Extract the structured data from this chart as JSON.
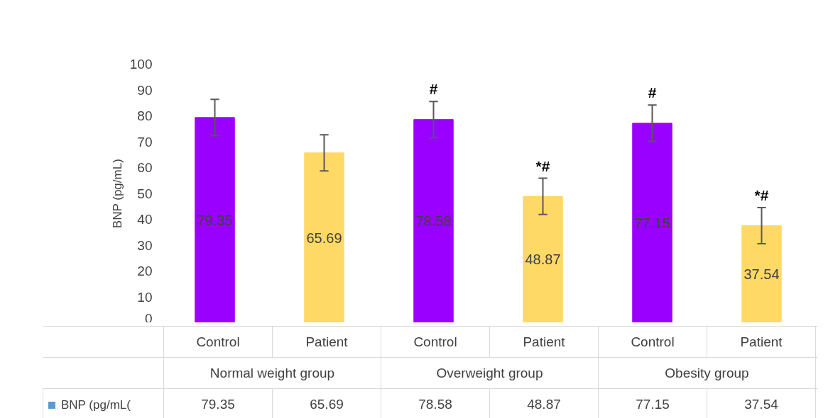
{
  "chart_data": [
    {
      "type": "bar",
      "ylabel": "BNP (pg/mL)",
      "xlabel": "Normal weight group",
      "categories": [
        "Control",
        "Patient"
      ],
      "series": [
        {
          "name": "BNP (pg/mL(",
          "color": "#5b9bd5",
          "colors": [
            "#9900ff",
            "#ffd966"
          ],
          "values": [
            79.35,
            65.69
          ],
          "value_labels": [
            "79.35",
            "65.69"
          ],
          "errors": [
            7,
            7
          ]
        }
      ],
      "ylim": [
        0,
        100
      ],
      "yticks": [
        0,
        10,
        20,
        30,
        40,
        50,
        60,
        70,
        80,
        90,
        100
      ],
      "data_labels": true,
      "legend": "bottom"
    },
    {
      "type": "bar",
      "xlabel": "Overweight group",
      "categories": [
        "Control",
        "Patient"
      ],
      "series": [
        {
          "colors": [
            "#9900ff",
            "#ffd966"
          ],
          "values": [
            78.58,
            48.87
          ],
          "value_labels": [
            "78.58",
            "48.87"
          ],
          "errors": [
            7,
            7
          ]
        }
      ],
      "ylim": [
        0,
        100
      ],
      "tick_labels": "x",
      "data_labels": true,
      "annotations": [
        {
          "text": "#",
          "x": "Control",
          "y": 85.58
        },
        {
          "text": "*#",
          "x": "Patient",
          "y": 55.87
        }
      ]
    },
    {
      "type": "bar",
      "xlabel": "Obesity group",
      "categories": [
        "Control",
        "Patient"
      ],
      "series": [
        {
          "colors": [
            "#9900ff",
            "#ffd966"
          ],
          "values": [
            77.15,
            37.54
          ],
          "value_labels": [
            "77.15",
            "37.54"
          ],
          "errors": [
            7,
            7
          ]
        }
      ],
      "ylim": [
        0,
        100
      ],
      "tick_labels": "x",
      "data_labels": true,
      "annotations": [
        {
          "text": "#",
          "x": "Control",
          "y": 84.15
        },
        {
          "text": "*#",
          "x": "Patient",
          "y": 44.54
        }
      ]
    }
  ]
}
